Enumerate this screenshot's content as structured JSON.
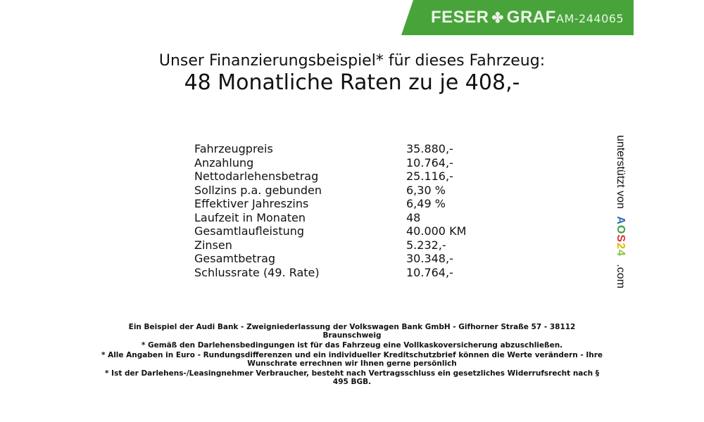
{
  "header": {
    "brand": "FESER",
    "brand2": "GRAF",
    "clover_icon": "clover-icon",
    "vehicle_code": "AM-244065",
    "brand_color": "#48a43a"
  },
  "title": {
    "line1": "Unser Finanzierungsbeispiel* für dieses Fahrzeug:",
    "line2": "48 Monatliche Raten zu je 408,-"
  },
  "rows": [
    {
      "label": "Fahrzeugpreis",
      "value": "35.880,-"
    },
    {
      "label": "Anzahlung",
      "value": "10.764,-"
    },
    {
      "label": "Nettodarlehensbetrag",
      "value": "25.116,-"
    },
    {
      "label": "Sollzins p.a. gebunden",
      "value": "6,30 %"
    },
    {
      "label": "Effektiver Jahreszins",
      "value": "6,49 %"
    },
    {
      "label": "Laufzeit in Monaten",
      "value": "48"
    },
    {
      "label": "Gesamtlaufleistung",
      "value": "40.000 KM"
    },
    {
      "label": "Zinsen",
      "value": "5.232,-"
    },
    {
      "label": "Gesamtbetrag",
      "value": "30.348,-"
    },
    {
      "label": "Schlussrate (49. Rate)",
      "value": "10.764,-"
    }
  ],
  "side": {
    "text": "unterstützt von",
    "logo": "AOS24",
    "suffix": ".com"
  },
  "footer": [
    "Ein Beispiel der Audi Bank - Zweigniederlassung der Volkswagen Bank GmbH - Gifhorner Straße 57 - 38112 Braunschweig",
    "* Gemäß den Darlehensbedingungen ist für das Fahrzeug eine Vollkaskoversicherung abzuschließen.",
    "* Alle Angaben in Euro - Rundungsdifferenzen und ein individueller Kreditschutzbrief können die Werte verändern - Ihre Wunschrate errechnen wir Ihnen gerne persönlich",
    "* Ist der Darlehens-/Leasingnehmer Verbraucher, besteht nach Vertragsschluss ein gesetzliches Widerrufsrecht nach § 495 BGB."
  ]
}
